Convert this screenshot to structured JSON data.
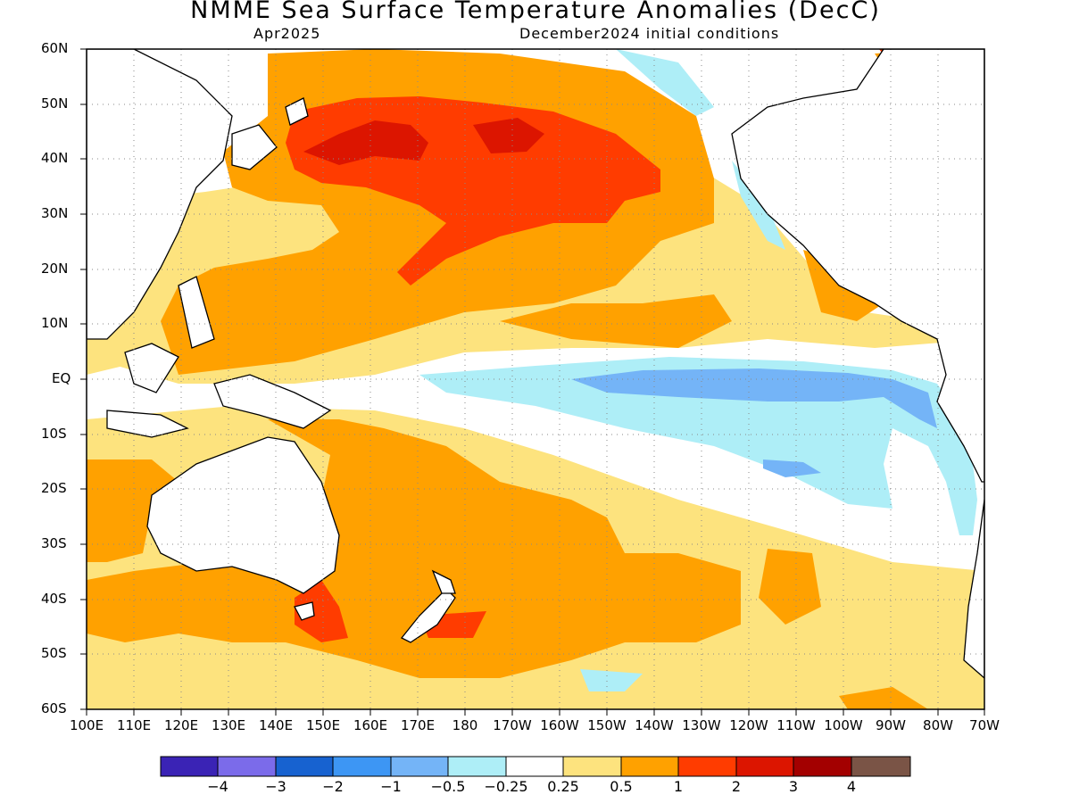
{
  "header": {
    "title": "NMME Sea Surface Temperature Anomalies (DecC)",
    "valid_month": "Apr2025",
    "initial_conditions": "December2024 initial conditions"
  },
  "axes": {
    "lat_labels": [
      "60N",
      "50N",
      "40N",
      "30N",
      "20N",
      "10N",
      "EQ",
      "10S",
      "20S",
      "30S",
      "40S",
      "50S",
      "60S"
    ],
    "lon_labels": [
      "100E",
      "110E",
      "120E",
      "130E",
      "140E",
      "150E",
      "160E",
      "170E",
      "180",
      "170W",
      "160W",
      "150W",
      "140W",
      "130W",
      "120W",
      "110W",
      "100W",
      "90W",
      "80W",
      "70W"
    ]
  },
  "colorbar": {
    "colors": [
      "#3a23b5",
      "#7b6bea",
      "#1762d0",
      "#3d96f4",
      "#74b4f7",
      "#aeeef7",
      "#ffffff",
      "#fde37e",
      "#ffa100",
      "#ff3c00",
      "#dc1500",
      "#a30000",
      "#7a5446"
    ],
    "labels": [
      "−4",
      "−3",
      "−2",
      "−1",
      "−0.5",
      "−0.25",
      "0.25",
      "0.5",
      "1",
      "2",
      "3",
      "4"
    ]
  }
}
